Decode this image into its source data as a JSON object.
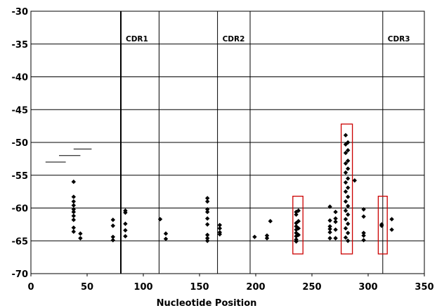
{
  "chart_data": {
    "type": "scatter",
    "title": "",
    "xlabel": "Nucleotide Position",
    "ylabel": "",
    "xlim": [
      0,
      350
    ],
    "ylim": [
      -70,
      -30
    ],
    "x_ticks": [
      0,
      50,
      100,
      150,
      200,
      250,
      300,
      350
    ],
    "y_ticks": [
      -30,
      -35,
      -40,
      -45,
      -50,
      -55,
      -60,
      -65,
      -70
    ],
    "x_tick_labels": [
      "0",
      "50",
      "100",
      "150",
      "200",
      "250",
      "300",
      "350"
    ],
    "y_tick_labels": [
      "-30",
      "-35",
      "-40",
      "-45",
      "-50",
      "-55",
      "-60",
      "-65",
      "-70"
    ],
    "grid": {
      "horizontal": true,
      "vertical": false
    },
    "marker_color": "#000000",
    "highlight_color": "#cc0000",
    "regions": [
      {
        "label": "CDR1",
        "x_start": 80,
        "x_end": 114
      },
      {
        "label": "CDR2",
        "x_start": 166,
        "x_end": 195
      },
      {
        "label": "CDR3",
        "x_start": 313,
        "x_end": 350
      }
    ],
    "region_boundaries": [
      80,
      114,
      166,
      195,
      313
    ],
    "bold_boundary": 80,
    "legend_bars": [
      {
        "x_start": 13,
        "x_end": 31,
        "y": -53
      },
      {
        "x_start": 25,
        "x_end": 44,
        "y": -52
      },
      {
        "x_start": 38,
        "x_end": 54,
        "y": -51
      }
    ],
    "highlight_boxes": [
      {
        "x_min": 233,
        "x_max": 242,
        "y_min": -67,
        "y_max": -58.2
      },
      {
        "x_min": 276,
        "x_max": 286,
        "y_min": -67,
        "y_max": -47.2
      },
      {
        "x_min": 309,
        "x_max": 317,
        "y_min": -67,
        "y_max": -58.2
      }
    ],
    "points": [
      [
        38,
        -56
      ],
      [
        38,
        -58.3
      ],
      [
        38,
        -59
      ],
      [
        38,
        -59.6
      ],
      [
        38,
        -60.2
      ],
      [
        38,
        -60.6
      ],
      [
        38,
        -61.2
      ],
      [
        38,
        -61.8
      ],
      [
        38,
        -63
      ],
      [
        38,
        -63.6
      ],
      [
        44,
        -63.9
      ],
      [
        44,
        -64.6
      ],
      [
        73,
        -61.8
      ],
      [
        73,
        -62.7
      ],
      [
        73,
        -64.4
      ],
      [
        73,
        -64.9
      ],
      [
        84,
        -60.4
      ],
      [
        84,
        -60.7
      ],
      [
        84,
        -62.4
      ],
      [
        84,
        -63.4
      ],
      [
        84,
        -64.3
      ],
      [
        115,
        -61.7
      ],
      [
        120,
        -63.9
      ],
      [
        120,
        -64.7
      ],
      [
        157,
        -58.5
      ],
      [
        157,
        -59
      ],
      [
        157,
        -60.2
      ],
      [
        157,
        -60.6
      ],
      [
        157,
        -61.6
      ],
      [
        157,
        -62.5
      ],
      [
        157,
        -64.1
      ],
      [
        157,
        -64.6
      ],
      [
        157,
        -65
      ],
      [
        168,
        -62.6
      ],
      [
        168,
        -63.1
      ],
      [
        168,
        -63.7
      ],
      [
        168,
        -64
      ],
      [
        199,
        -64.4
      ],
      [
        210,
        -64.2
      ],
      [
        210,
        -64.6
      ],
      [
        213,
        -62
      ],
      [
        236,
        -60.6
      ],
      [
        236,
        -61
      ],
      [
        236,
        -62.3
      ],
      [
        236,
        -62.8
      ],
      [
        236,
        -63.3
      ],
      [
        236,
        -63.8
      ],
      [
        236,
        -64.3
      ],
      [
        236,
        -64.8
      ],
      [
        236,
        -65.1
      ],
      [
        238,
        -60.4
      ],
      [
        238,
        -62
      ],
      [
        238,
        -63.1
      ],
      [
        238,
        -64.1
      ],
      [
        266,
        -59.8
      ],
      [
        266,
        -61.9
      ],
      [
        266,
        -62.8
      ],
      [
        266,
        -63.2
      ],
      [
        266,
        -63.7
      ],
      [
        266,
        -64.6
      ],
      [
        271,
        -60.6
      ],
      [
        271,
        -61.6
      ],
      [
        271,
        -62.1
      ],
      [
        271,
        -63.3
      ],
      [
        271,
        -64.6
      ],
      [
        280,
        -48.9
      ],
      [
        280,
        -50.3
      ],
      [
        280,
        -51.6
      ],
      [
        280,
        -53.2
      ],
      [
        280,
        -54.6
      ],
      [
        280,
        -56.1
      ],
      [
        280,
        -57.5
      ],
      [
        280,
        -59
      ],
      [
        280,
        -60.4
      ],
      [
        280,
        -61.7
      ],
      [
        280,
        -63.1
      ],
      [
        280,
        -64.5
      ],
      [
        282,
        -50
      ],
      [
        282,
        -51.2
      ],
      [
        282,
        -52.8
      ],
      [
        282,
        -54
      ],
      [
        282,
        -55.5
      ],
      [
        282,
        -56.9
      ],
      [
        282,
        -58.3
      ],
      [
        282,
        -59.7
      ],
      [
        282,
        -61
      ],
      [
        282,
        -62.4
      ],
      [
        282,
        -63.8
      ],
      [
        282,
        -65
      ],
      [
        288,
        -55.8
      ],
      [
        296,
        -60.2
      ],
      [
        296,
        -61.3
      ],
      [
        296,
        -63.8
      ],
      [
        296,
        -64.2
      ],
      [
        296,
        -64.9
      ],
      [
        312,
        -62.5
      ],
      [
        312,
        -62.7
      ],
      [
        321,
        -61.7
      ],
      [
        321,
        -63.3
      ]
    ]
  }
}
